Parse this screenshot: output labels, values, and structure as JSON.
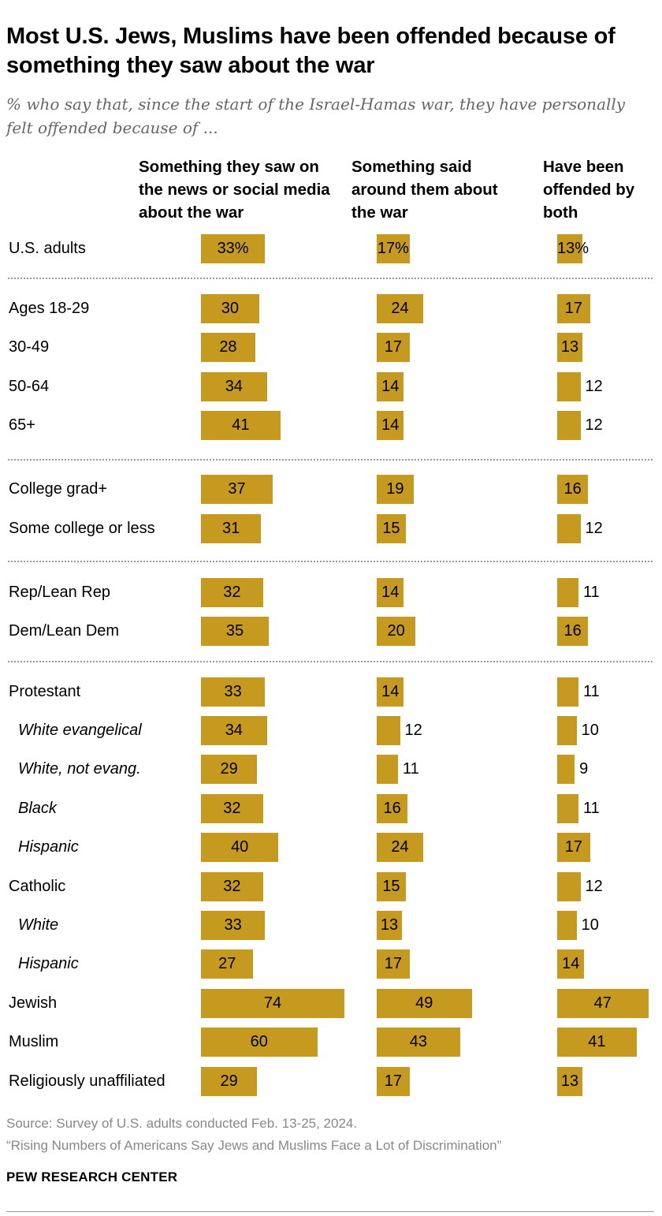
{
  "title": "Most U.S. Jews, Muslims have been offended because of something they saw about the war",
  "subtitle": "% who say that, since the start of the Israel-Hamas war, they have personally felt offended because of ...",
  "colors": {
    "bar": "#c59a1f",
    "divider": "#999999",
    "muted": "#888888"
  },
  "chart_data": {
    "type": "bar",
    "series": [
      {
        "name": "Something they saw on the news or social media about the war"
      },
      {
        "name": "Something said around them about the war"
      },
      {
        "name": "Have been offended by both"
      }
    ],
    "rows": [
      {
        "label": "U.S. adults",
        "values": [
          33,
          17,
          13
        ],
        "display": [
          "33%",
          "17%",
          "13%"
        ],
        "italic": false
      },
      {
        "label": "Ages 18-29",
        "values": [
          30,
          24,
          17
        ],
        "display": [
          "30",
          "24",
          "17"
        ],
        "italic": false
      },
      {
        "label": "30-49",
        "values": [
          28,
          17,
          13
        ],
        "display": [
          "28",
          "17",
          "13"
        ],
        "italic": false
      },
      {
        "label": "50-64",
        "values": [
          34,
          14,
          12
        ],
        "display": [
          "34",
          "14",
          "12"
        ],
        "italic": false
      },
      {
        "label": "65+",
        "values": [
          41,
          14,
          12
        ],
        "display": [
          "41",
          "14",
          "12"
        ],
        "italic": false
      },
      {
        "label": "College grad+",
        "values": [
          37,
          19,
          16
        ],
        "display": [
          "37",
          "19",
          "16"
        ],
        "italic": false
      },
      {
        "label": "Some college or less",
        "values": [
          31,
          15,
          12
        ],
        "display": [
          "31",
          "15",
          "12"
        ],
        "italic": false
      },
      {
        "label": "Rep/Lean Rep",
        "values": [
          32,
          14,
          11
        ],
        "display": [
          "32",
          "14",
          "11"
        ],
        "italic": false
      },
      {
        "label": "Dem/Lean Dem",
        "values": [
          35,
          20,
          16
        ],
        "display": [
          "35",
          "20",
          "16"
        ],
        "italic": false
      },
      {
        "label": "Protestant",
        "values": [
          33,
          14,
          11
        ],
        "display": [
          "33",
          "14",
          "11"
        ],
        "italic": false
      },
      {
        "label": "White evangelical",
        "values": [
          34,
          12,
          10
        ],
        "display": [
          "34",
          "12",
          "10"
        ],
        "italic": true
      },
      {
        "label": "White, not evang.",
        "values": [
          29,
          11,
          9
        ],
        "display": [
          "29",
          "11",
          "9"
        ],
        "italic": true
      },
      {
        "label": "Black",
        "values": [
          32,
          16,
          11
        ],
        "display": [
          "32",
          "16",
          "11"
        ],
        "italic": true
      },
      {
        "label": "Hispanic",
        "values": [
          40,
          24,
          17
        ],
        "display": [
          "40",
          "24",
          "17"
        ],
        "italic": true
      },
      {
        "label": "Catholic",
        "values": [
          32,
          15,
          12
        ],
        "display": [
          "32",
          "15",
          "12"
        ],
        "italic": false
      },
      {
        "label": "White",
        "values": [
          33,
          13,
          10
        ],
        "display": [
          "33",
          "13",
          "10"
        ],
        "italic": true
      },
      {
        "label": "Hispanic",
        "values": [
          27,
          17,
          14
        ],
        "display": [
          "27",
          "17",
          "14"
        ],
        "italic": true
      },
      {
        "label": "Jewish",
        "values": [
          74,
          49,
          47
        ],
        "display": [
          "74",
          "49",
          "47"
        ],
        "italic": false
      },
      {
        "label": "Muslim",
        "values": [
          60,
          43,
          41
        ],
        "display": [
          "60",
          "43",
          "41"
        ],
        "italic": false
      },
      {
        "label": "Religiously unaffiliated",
        "values": [
          29,
          17,
          13
        ],
        "display": [
          "29",
          "17",
          "13"
        ],
        "italic": false
      }
    ],
    "xlim": [
      0,
      100
    ],
    "grid": false,
    "legend": "column headers at top"
  },
  "footer": {
    "source": "Source: Survey of U.S. adults conducted Feb. 13-25, 2024.",
    "report": "“Rising Numbers of Americans Say Jews and Muslims Face a Lot of Discrimination”",
    "org": "PEW RESEARCH CENTER"
  }
}
